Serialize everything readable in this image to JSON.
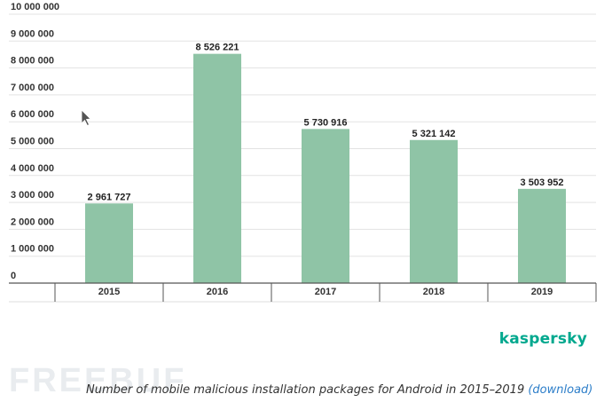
{
  "chart_data": {
    "type": "bar",
    "categories": [
      "2015",
      "2016",
      "2017",
      "2018",
      "2019"
    ],
    "values": [
      2961727,
      8526221,
      5730916,
      5321142,
      3503952
    ],
    "value_labels": [
      "2 961 727",
      "8 526 221",
      "5 730 916",
      "5 321 142",
      "3 503 952"
    ],
    "ylim": [
      0,
      10000000
    ],
    "yticks": [
      0,
      1000000,
      2000000,
      3000000,
      4000000,
      5000000,
      6000000,
      7000000,
      8000000,
      9000000,
      10000000
    ],
    "ytick_labels": [
      "0",
      "1 000 000",
      "2 000 000",
      "3 000 000",
      "4 000 000",
      "5 000 000",
      "6 000 000",
      "7 000 000",
      "8 000 000",
      "9 000 000",
      "10 000 000"
    ],
    "grid": true,
    "bar_color": "#8fc4a6",
    "title": "",
    "xlabel": "",
    "ylabel": ""
  },
  "brand": "kaspersky",
  "watermark": "FREEBUF",
  "caption": {
    "text": "Number of mobile malicious installation packages for Android in 2015–2019",
    "link_label": "(download)"
  },
  "colors": {
    "accent": "#00a88e",
    "link": "#2d7ec9"
  }
}
